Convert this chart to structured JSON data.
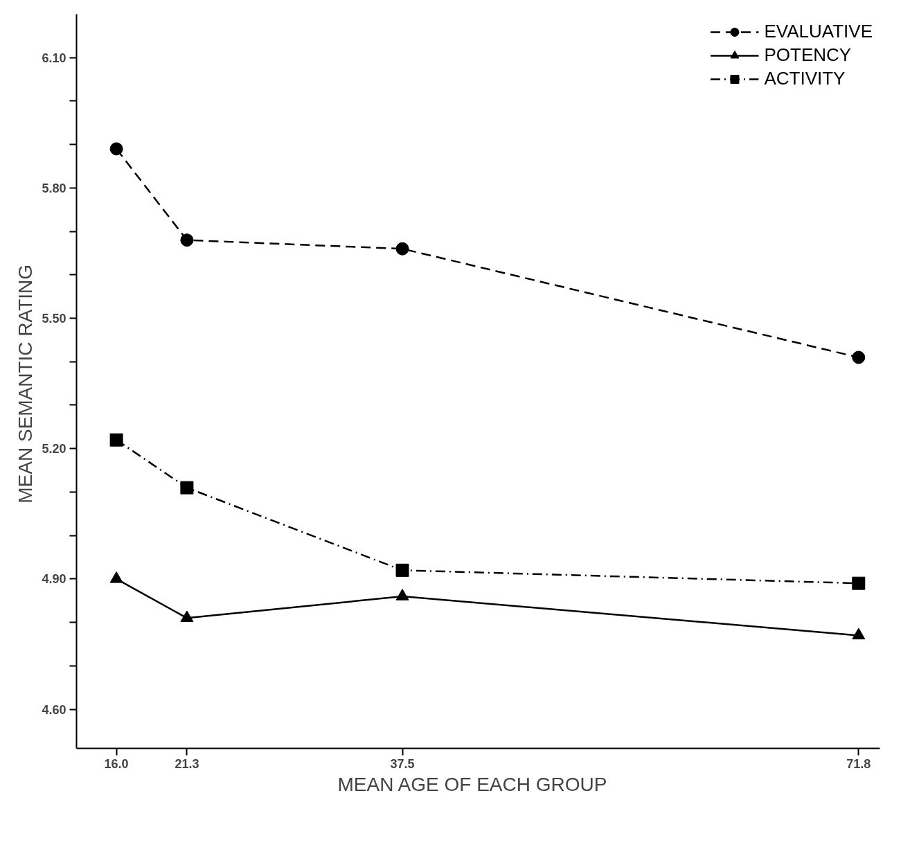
{
  "chart_data": {
    "type": "line",
    "xlabel": "MEAN  AGE OF EACH  GROUP",
    "ylabel": "MEAN  SEMANTIC RATING",
    "x": [
      16.0,
      21.3,
      37.5,
      71.8
    ],
    "xlim": [
      13.0,
      73.4
    ],
    "ylim": [
      4.51,
      6.2
    ],
    "xticks": [
      {
        "value": 16.0,
        "label": "16.0"
      },
      {
        "value": 21.3,
        "label": "21.3"
      },
      {
        "value": 37.5,
        "label": "37.5"
      },
      {
        "value": 71.8,
        "label": "71.8"
      }
    ],
    "yticks": [
      {
        "value": 4.6,
        "label": "4.60"
      },
      {
        "value": 4.7,
        "label": null
      },
      {
        "value": 4.8,
        "label": null
      },
      {
        "value": 4.9,
        "label": "4.90"
      },
      {
        "value": 5.0,
        "label": null
      },
      {
        "value": 5.1,
        "label": null
      },
      {
        "value": 5.2,
        "label": "5.20"
      },
      {
        "value": 5.3,
        "label": null
      },
      {
        "value": 5.4,
        "label": null
      },
      {
        "value": 5.5,
        "label": "5.50"
      },
      {
        "value": 5.6,
        "label": null
      },
      {
        "value": 5.7,
        "label": null
      },
      {
        "value": 5.8,
        "label": "5.80"
      },
      {
        "value": 5.9,
        "label": null
      },
      {
        "value": 6.0,
        "label": null
      },
      {
        "value": 6.1,
        "label": "6.10"
      }
    ],
    "grid": false,
    "legend": "top right",
    "series": [
      {
        "name": "EVALUATIVE",
        "color": "#000000",
        "marker": "circle",
        "line_style": "dashed",
        "values": [
          5.89,
          5.68,
          5.66,
          5.41
        ]
      },
      {
        "name": "POTENCY",
        "color": "#000000",
        "marker": "triangle",
        "line_style": "solid",
        "values": [
          4.9,
          4.81,
          4.86,
          4.77
        ]
      },
      {
        "name": "ACTIVITY",
        "color": "#000000",
        "marker": "square",
        "line_style": "dashdot",
        "values": [
          5.22,
          5.11,
          4.92,
          4.89
        ]
      }
    ]
  }
}
